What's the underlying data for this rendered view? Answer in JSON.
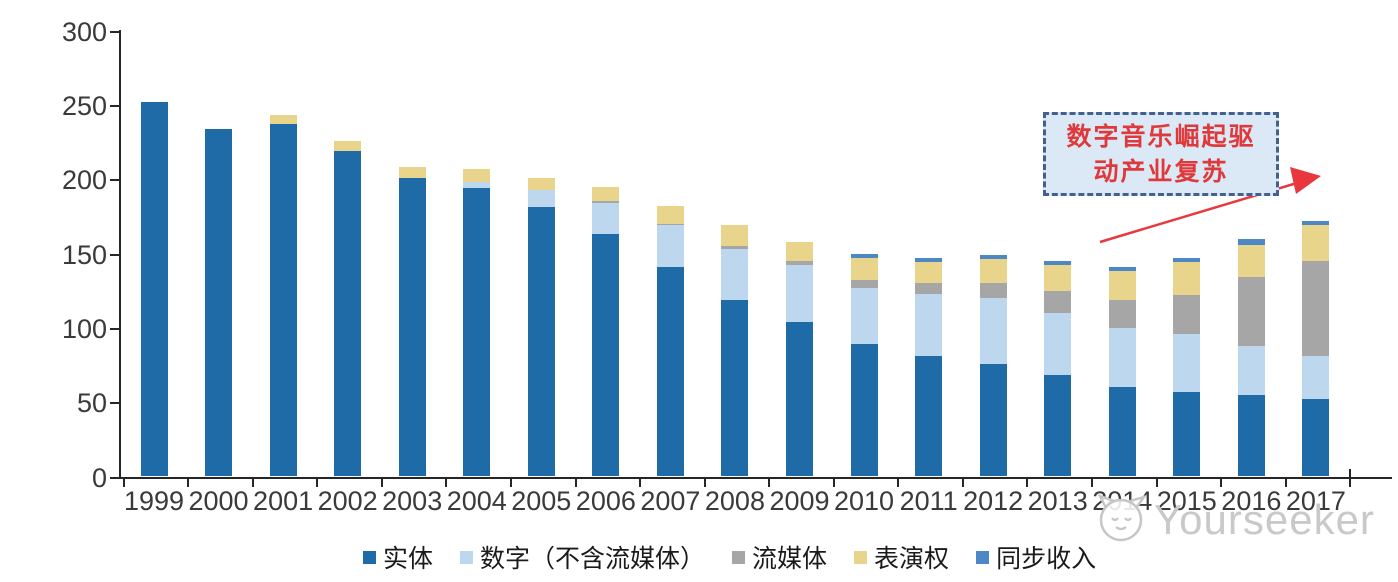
{
  "chart_data": {
    "type": "bar",
    "stacked": true,
    "title": "",
    "xlabel": "",
    "ylabel": "",
    "ylim": [
      0,
      300
    ],
    "yticks": [
      0,
      50,
      100,
      150,
      200,
      250,
      300
    ],
    "grid": false,
    "legend_position": "bottom",
    "categories": [
      "1999",
      "2000",
      "2001",
      "2002",
      "2003",
      "2004",
      "2005",
      "2006",
      "2007",
      "2008",
      "2009",
      "2010",
      "2011",
      "2012",
      "2013",
      "2014",
      "2015",
      "2016",
      "2017"
    ],
    "series": [
      {
        "name": "实体",
        "color": "#1f6ba8",
        "values": [
          252,
          234,
          237,
          219,
          201,
          194,
          181,
          163,
          141,
          119,
          104,
          89,
          81,
          76,
          68,
          60,
          57,
          55,
          52
        ]
      },
      {
        "name": "数字（不含流媒体）",
        "color": "#bdd7ee",
        "values": [
          0,
          0,
          0,
          0,
          0,
          4,
          12,
          21,
          28,
          34,
          38,
          38,
          42,
          44,
          42,
          40,
          39,
          33,
          29
        ]
      },
      {
        "name": "流媒体",
        "color": "#a6a6a6",
        "values": [
          0,
          0,
          0,
          0,
          0,
          0,
          0,
          1,
          1,
          2,
          3,
          5,
          7,
          10,
          15,
          19,
          26,
          46,
          64
        ]
      },
      {
        "name": "表演权",
        "color": "#e9d48c",
        "values": [
          0,
          0,
          6,
          7,
          7,
          9,
          8,
          10,
          12,
          14,
          13,
          15,
          14,
          16,
          17,
          19,
          22,
          22,
          24
        ]
      },
      {
        "name": "同步收入",
        "color": "#4e87c6",
        "values": [
          0,
          0,
          0,
          0,
          0,
          0,
          0,
          0,
          0,
          0,
          0,
          3,
          3,
          3,
          3,
          3,
          3,
          4,
          3
        ]
      }
    ],
    "totals": [
      252,
      234,
      243,
      226,
      208,
      207,
      201,
      195,
      182,
      169,
      158,
      150,
      147,
      149,
      145,
      141,
      147,
      160,
      172
    ]
  },
  "annotation": {
    "line1": "数字音乐崛起驱",
    "line2": "动产业复苏",
    "text": "数字音乐崛起驱动产业复苏",
    "fill_color": "#dbe9f6",
    "border_color": "#44618e",
    "text_color": "#e0393b"
  },
  "arrow": {
    "color": "#e8383e"
  },
  "watermark": {
    "text": "Yourseeker",
    "logo": "cat-logo",
    "color": "#c9c9c9"
  }
}
